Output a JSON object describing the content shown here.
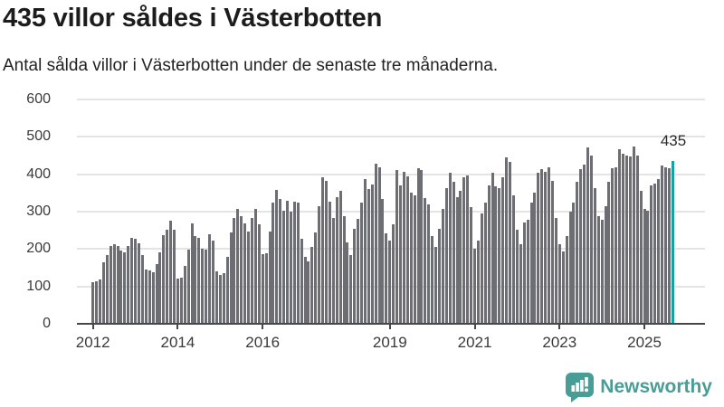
{
  "header": {
    "title": "435 villor såldes i Västerbotten",
    "subtitle": "Antal sålda villor i Västerbotten under de senaste tre månaderna."
  },
  "annotation": {
    "last_value_label": "435"
  },
  "footer": {
    "brand": "Newsworthy"
  },
  "colors": {
    "bar": "#6d6d74",
    "highlight": "#14a3a0",
    "grid": "#e4e4e4",
    "axis_line": "#46464b",
    "tick_text": "#3a3a3a",
    "brand": "#499d97"
  },
  "chart_data": {
    "type": "bar",
    "title": "435 villor såldes i Västerbotten",
    "subtitle": "Antal sålda villor i Västerbotten under de senaste tre månaderna.",
    "unit": "sålda villor per 3 månader",
    "frequency": "monthly",
    "x_start": "2012-01",
    "x_end": "2025-09",
    "x_tick_labels": [
      "2012",
      "2014",
      "2016",
      "2019",
      "2021",
      "2023",
      "2025"
    ],
    "y_ticks": [
      0,
      100,
      200,
      300,
      400,
      500,
      600
    ],
    "ylim": [
      0,
      600
    ],
    "grid": "horizontal",
    "legend": "none",
    "highlight_last_value": 435,
    "values": [
      112,
      114,
      118,
      165,
      185,
      207,
      212,
      209,
      196,
      192,
      208,
      230,
      228,
      215,
      183,
      146,
      142,
      139,
      160,
      192,
      236,
      252,
      275,
      251,
      122,
      124,
      156,
      198,
      269,
      235,
      229,
      202,
      198,
      239,
      222,
      140,
      130,
      136,
      178,
      244,
      283,
      307,
      287,
      269,
      247,
      284,
      307,
      265,
      186,
      188,
      247,
      324,
      359,
      335,
      303,
      329,
      299,
      327,
      325,
      228,
      180,
      166,
      206,
      244,
      315,
      391,
      383,
      327,
      284,
      339,
      355,
      287,
      218,
      185,
      255,
      280,
      323,
      387,
      360,
      373,
      429,
      418,
      333,
      243,
      222,
      267,
      411,
      371,
      407,
      395,
      351,
      343,
      415,
      411,
      337,
      319,
      235,
      206,
      255,
      307,
      363,
      403,
      379,
      339,
      355,
      391,
      397,
      311,
      202,
      222,
      295,
      323,
      371,
      403,
      367,
      363,
      391,
      445,
      434,
      343,
      252,
      214,
      271,
      279,
      323,
      351,
      403,
      413,
      407,
      419,
      383,
      284,
      214,
      194,
      235,
      299,
      323,
      379,
      413,
      427,
      471,
      451,
      363,
      287,
      279,
      315,
      379,
      415,
      419,
      468,
      455,
      451,
      447,
      475,
      451,
      355,
      307,
      303,
      371,
      375,
      387,
      423,
      418,
      415,
      435
    ]
  }
}
